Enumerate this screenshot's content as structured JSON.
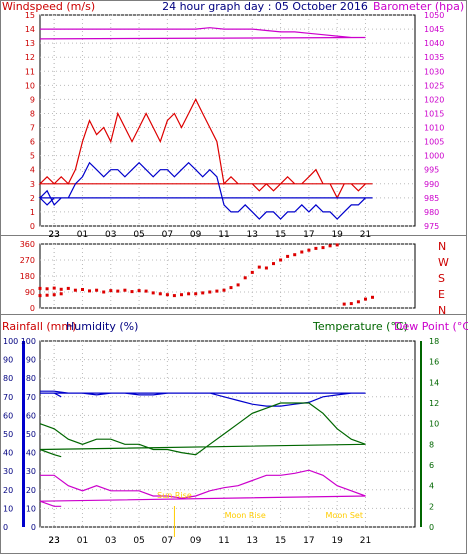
{
  "chart_data": [
    {
      "type": "line",
      "title": "24 hour graph day : 05 October 2016",
      "left_label": "Windspeed (m/s)",
      "right_label": "Barometer (hpa)",
      "x_tick_labels": [
        "23",
        "01",
        "03",
        "05",
        "07",
        "09",
        "11",
        "13",
        "15",
        "17",
        "19",
        "21",
        "23"
      ],
      "ylim_left": [
        0,
        15
      ],
      "y_ticks_left": [
        0,
        1,
        2,
        3,
        4,
        5,
        6,
        7,
        8,
        9,
        10,
        11,
        12,
        13,
        14,
        15
      ],
      "ylim_right": [
        975,
        1050
      ],
      "y_ticks_right": [
        975,
        980,
        985,
        990,
        995,
        1000,
        1005,
        1010,
        1015,
        1020,
        1025,
        1030,
        1035,
        1040,
        1045,
        1050
      ],
      "grid": true,
      "colors": {
        "gust": "#dd0000",
        "avg": "#0000cc",
        "baro": "#cc00cc"
      },
      "series": [
        {
          "name": "Windspeed",
          "axis": "left",
          "color": "#dd0000",
          "x": [
            22,
            22.5,
            23,
            23.5,
            0,
            0.5,
            1,
            1.5,
            2,
            2.5,
            3,
            3.5,
            4,
            4.5,
            5,
            5.5,
            6,
            6.5,
            7,
            7.5,
            8,
            8.5,
            9,
            9.5,
            10,
            10.5,
            11,
            11.5,
            12,
            12.5,
            13,
            13.5,
            14,
            14.5,
            15,
            15.5,
            16,
            16.5,
            17,
            17.5,
            18,
            18.5,
            19,
            19.5,
            20,
            20.5,
            21,
            21.5,
            22,
            22.5,
            23,
            23.5
          ],
          "values": [
            3,
            3.5,
            3,
            3.5,
            3,
            4,
            6,
            7.5,
            6.5,
            7,
            6,
            8,
            7,
            6,
            7,
            8,
            7,
            6,
            7.5,
            8,
            7,
            8,
            9,
            8,
            7,
            6,
            3,
            3.5,
            3,
            3,
            3,
            2.5,
            3,
            2.5,
            3,
            3.5,
            3,
            3,
            3.5,
            4,
            3,
            3,
            2,
            3,
            3,
            2.5,
            3,
            3,
            3,
            3.5,
            3,
            3
          ]
        },
        {
          "name": "Average",
          "axis": "left",
          "color": "#0000cc",
          "x": [
            22,
            22.5,
            23,
            23.5,
            0,
            0.5,
            1,
            1.5,
            2,
            2.5,
            3,
            3.5,
            4,
            4.5,
            5,
            5.5,
            6,
            6.5,
            7,
            7.5,
            8,
            8.5,
            9,
            9.5,
            10,
            10.5,
            11,
            11.5,
            12,
            12.5,
            13,
            13.5,
            14,
            14.5,
            15,
            15.5,
            16,
            16.5,
            17,
            17.5,
            18,
            18.5,
            19,
            19.5,
            20,
            20.5,
            21,
            21.5,
            22,
            22.5,
            23,
            23.5
          ],
          "values": [
            2,
            2.5,
            1.5,
            2,
            2,
            3,
            3.5,
            4.5,
            4,
            3.5,
            4,
            4,
            3.5,
            4,
            4.5,
            4,
            3.5,
            4,
            4,
            3.5,
            4,
            4.5,
            4,
            3.5,
            4,
            3.5,
            1.5,
            1,
            1,
            1.5,
            1,
            0.5,
            1,
            1,
            0.5,
            1,
            1,
            1.5,
            1,
            1.5,
            1,
            1,
            0.5,
            1,
            1.5,
            1.5,
            2,
            2,
            2,
            1.5,
            2,
            2
          ]
        },
        {
          "name": "Barometer",
          "axis": "right",
          "color": "#cc00cc",
          "x": [
            22,
            23,
            0,
            1,
            2,
            3,
            4,
            5,
            6,
            7,
            8,
            9,
            10,
            11,
            12,
            13,
            14,
            15,
            16,
            17,
            18,
            19,
            20,
            21,
            22,
            23,
            23.5
          ],
          "values": [
            1045,
            1045,
            1045,
            1045,
            1045,
            1045,
            1045,
            1045,
            1045,
            1045,
            1045,
            1045,
            1045.5,
            1045,
            1045,
            1045,
            1044.5,
            1044,
            1044,
            1043.5,
            1043,
            1042.5,
            1042,
            1042,
            1041.5,
            1041.5,
            1041.5
          ]
        }
      ]
    },
    {
      "type": "scatter",
      "series_name": "Wind direction",
      "ylim": [
        0,
        360
      ],
      "y_ticks": [
        0,
        90,
        180,
        270,
        360
      ],
      "right_compass_labels": [
        "N",
        "W",
        "S",
        "E",
        "N"
      ],
      "x_tick_labels": [
        "23",
        "01",
        "03",
        "05",
        "07",
        "09",
        "11",
        "13",
        "15",
        "17",
        "19",
        "21",
        "23"
      ],
      "color": "#dd0000",
      "x": [
        22,
        22.5,
        23,
        23.5,
        0,
        0.5,
        1,
        1.5,
        2,
        2.5,
        3,
        3.5,
        4,
        4.5,
        5,
        5.5,
        6,
        6.5,
        7,
        7.5,
        8,
        8.5,
        9,
        9.5,
        10,
        10.5,
        11,
        11.5,
        12,
        12.5,
        13,
        13.5,
        14,
        14.5,
        15,
        15.5,
        16,
        16.5,
        17,
        17.5,
        18,
        18.5,
        19,
        19.5,
        20,
        20.5,
        21,
        21.5,
        22,
        22.5,
        23,
        23.5
      ],
      "values": [
        110,
        108,
        112,
        105,
        110,
        100,
        104,
        96,
        100,
        90,
        98,
        95,
        100,
        92,
        98,
        95,
        85,
        80,
        75,
        70,
        75,
        80,
        80,
        85,
        90,
        95,
        100,
        115,
        130,
        170,
        200,
        230,
        225,
        250,
        270,
        290,
        300,
        315,
        325,
        335,
        340,
        350,
        355,
        22,
        25,
        35,
        50,
        60,
        70,
        72,
        75,
        80
      ]
    },
    {
      "type": "line",
      "left_label_1": "Rainfall (mm)",
      "left_label_2": "Humidity (%)",
      "right_label_1": "Temperature (°C)",
      "right_label_2": "Dew Point (°C)",
      "x_tick_labels": [
        "23",
        "01",
        "03",
        "05",
        "07",
        "09",
        "11",
        "13",
        "15",
        "17",
        "19",
        "21",
        "23"
      ],
      "ylim_humidity": [
        0,
        100
      ],
      "y_ticks_humidity": [
        0,
        10,
        20,
        30,
        40,
        50,
        60,
        70,
        80,
        90,
        100
      ],
      "ylim_temperature": [
        0,
        18
      ],
      "y_ticks_temperature": [
        0,
        2,
        4,
        6,
        8,
        10,
        12,
        14,
        16,
        18
      ],
      "grid": true,
      "annotations": [
        "Sun Rise",
        "Moon Rise",
        "Moon Set"
      ],
      "annotation_color": "#ffcc00",
      "colors": {
        "humidity": "#0000cc",
        "temperature": "#006600",
        "dewpoint": "#cc00cc"
      },
      "series": [
        {
          "name": "Humidity",
          "axis": "humidity",
          "color": "#0000cc",
          "x": [
            22,
            23,
            0,
            1,
            2,
            3,
            4,
            5,
            6,
            7,
            8,
            9,
            10,
            11,
            12,
            13,
            14,
            15,
            16,
            17,
            18,
            19,
            20,
            21,
            22,
            23,
            23.5
          ],
          "values": [
            73,
            73,
            72,
            72,
            71,
            72,
            72,
            71,
            71,
            72,
            72,
            72,
            72,
            70,
            68,
            66,
            65,
            65,
            66,
            67,
            70,
            71,
            72,
            72,
            72,
            72,
            70
          ]
        },
        {
          "name": "Temperature",
          "axis": "temperature",
          "color": "#006600",
          "x": [
            22,
            23,
            0,
            1,
            2,
            3,
            4,
            5,
            6,
            7,
            8,
            9,
            10,
            11,
            12,
            13,
            14,
            15,
            16,
            17,
            18,
            19,
            20,
            21,
            22,
            23,
            23.5
          ],
          "values": [
            10,
            9.5,
            8.5,
            8,
            8.5,
            8.5,
            8,
            8,
            7.5,
            7.5,
            7.2,
            7,
            8,
            9,
            10,
            11,
            11.5,
            12,
            12,
            12,
            11,
            9.5,
            8.5,
            8,
            7.5,
            7,
            6.8
          ]
        },
        {
          "name": "Dew Point",
          "axis": "temperature",
          "color": "#cc00cc",
          "x": [
            22,
            23,
            0,
            1,
            2,
            3,
            4,
            5,
            6,
            7,
            8,
            9,
            10,
            11,
            12,
            13,
            14,
            15,
            16,
            17,
            18,
            19,
            20,
            21,
            22,
            23,
            23.5
          ],
          "values": [
            5,
            5,
            4,
            3.5,
            4,
            3.5,
            3.5,
            3.5,
            3,
            3,
            2.8,
            3,
            3.5,
            3.8,
            4,
            4.5,
            5,
            5,
            5.2,
            5.5,
            5,
            4,
            3.5,
            3,
            2.5,
            2,
            2
          ]
        }
      ]
    }
  ]
}
